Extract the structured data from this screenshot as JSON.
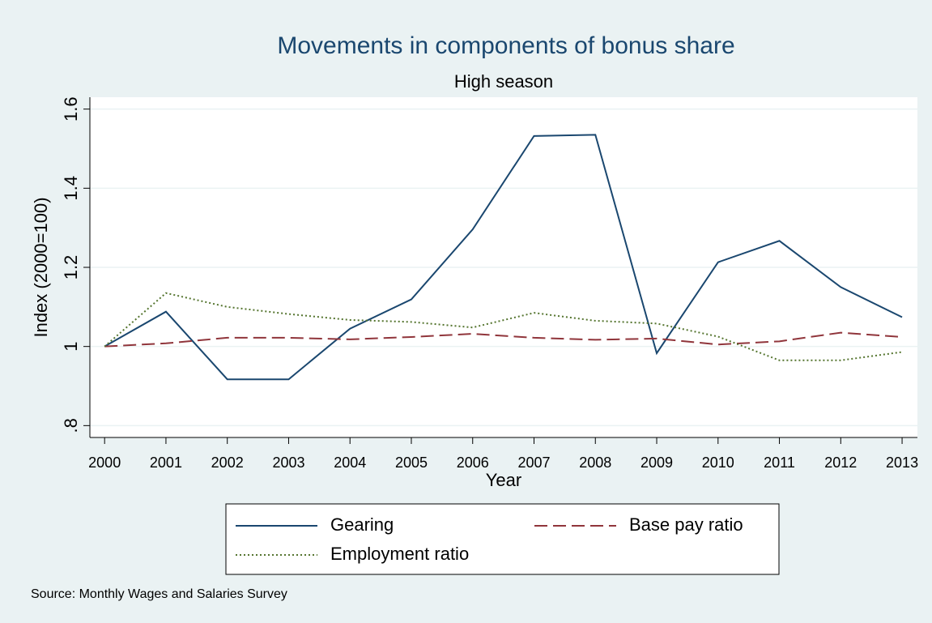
{
  "chart_data": {
    "type": "line",
    "title": "Movements in components of bonus share",
    "subtitle": "High season",
    "x_label": "Year",
    "y_label": "Index (2000=100)",
    "source": "Source: Monthly Wages and Salaries Survey",
    "x": [
      2000,
      2001,
      2002,
      2003,
      2004,
      2005,
      2006,
      2007,
      2008,
      2009,
      2010,
      2011,
      2012,
      2013
    ],
    "series": [
      {
        "name": "Gearing",
        "color": "#1a476f",
        "style": "solid",
        "values": [
          1.0,
          1.088,
          0.917,
          0.917,
          1.045,
          1.119,
          1.296,
          1.532,
          1.535,
          0.983,
          1.213,
          1.267,
          1.15,
          1.074
        ]
      },
      {
        "name": "Base pay ratio",
        "color": "#90353b",
        "style": "dashed",
        "values": [
          1.0,
          1.008,
          1.022,
          1.022,
          1.018,
          1.024,
          1.032,
          1.022,
          1.017,
          1.02,
          1.005,
          1.013,
          1.035,
          1.024
        ]
      },
      {
        "name": "Employment ratio",
        "color": "#55752f",
        "style": "dotted",
        "values": [
          1.0,
          1.135,
          1.1,
          1.082,
          1.067,
          1.062,
          1.048,
          1.085,
          1.065,
          1.058,
          1.025,
          0.965,
          0.965,
          0.986
        ]
      }
    ],
    "xlim": [
      1999.76,
      2013.25
    ],
    "xticks": [
      2000,
      2001,
      2002,
      2003,
      2004,
      2005,
      2006,
      2007,
      2008,
      2009,
      2010,
      2011,
      2012,
      2013
    ],
    "ylim": [
      0.77,
      1.63
    ],
    "yticks": [
      {
        "value": 0.8,
        "label": ".8"
      },
      1,
      1.2,
      1.4,
      1.6
    ],
    "grid": true,
    "legend": "bottom"
  }
}
